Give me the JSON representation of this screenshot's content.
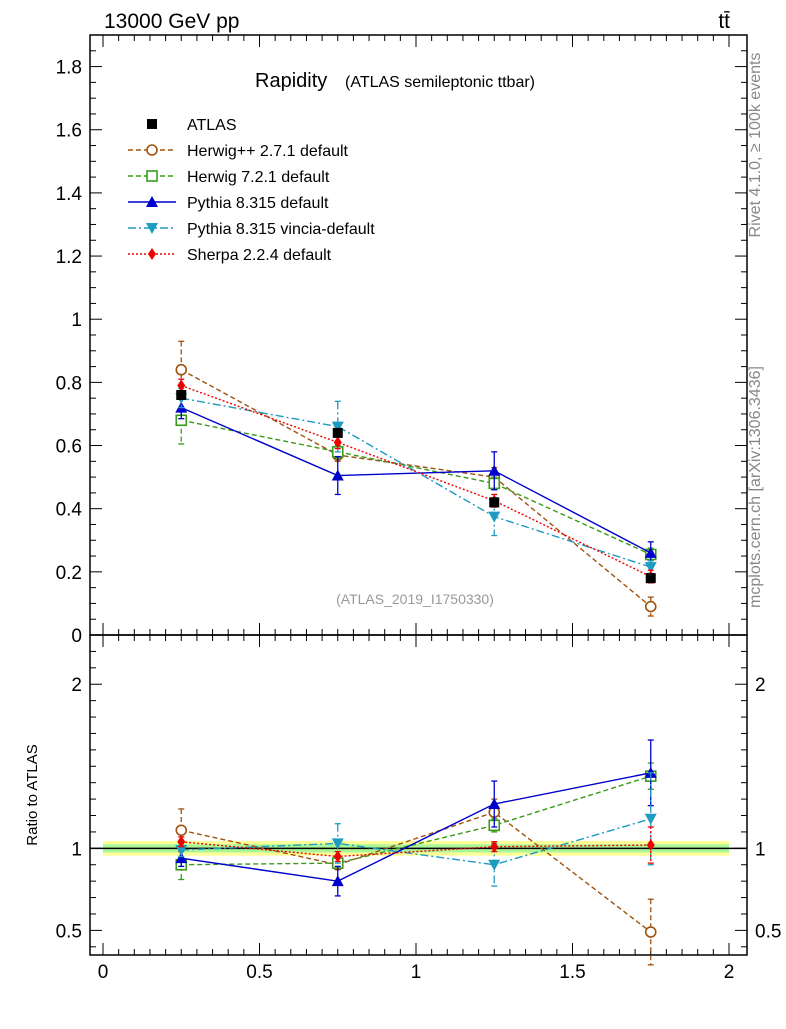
{
  "header": {
    "left": "13000 GeV pp",
    "right": "tt̄"
  },
  "side_labels": {
    "rivet": "Rivet 4.1.0, ≥ 100k events",
    "mcplots": "mcplots.cern.ch [arXiv:1306.3436]"
  },
  "colors": {
    "ATLAS": "#000000",
    "Herwig++ 2.7.1 default": "#a0520d",
    "Herwig 7.2.1 default": "#3a9a1a",
    "Pythia 8.315 default": "#0000cc",
    "Pythia 8.315 vincia-default": "#1e9bc0",
    "Sherpa 2.2.4 default": "#ee0000"
  },
  "chart_data": [
    {
      "panel": "main",
      "type": "line",
      "title": "Rapidity",
      "subtitle": "(ATLAS semileptonic ttbar)",
      "annotation": "(ATLAS_2019_I1750330)",
      "xlabel": "",
      "ylabel": "",
      "xlim": [
        0,
        2
      ],
      "ylim": [
        0,
        1.9
      ],
      "yticks": [
        "0",
        "0.2",
        "0.4",
        "0.6",
        "0.8",
        "1",
        "1.2",
        "1.4",
        "1.6",
        "1.8"
      ],
      "legend_position": "top-left",
      "x": [
        0.25,
        0.75,
        1.25,
        1.75
      ],
      "series": [
        {
          "name": "ATLAS",
          "values": [
            0.76,
            0.64,
            0.42,
            0.18
          ]
        },
        {
          "name": "Herwig++ 2.7.1 default",
          "values": [
            0.84,
            0.57,
            0.5,
            0.09
          ],
          "err": [
            0.09,
            0.02,
            0.03,
            0.03
          ]
        },
        {
          "name": "Herwig 7.2.1 default",
          "values": [
            0.68,
            0.58,
            0.48,
            0.255
          ],
          "err": [
            0.075,
            0.02,
            0.02,
            0.02
          ]
        },
        {
          "name": "Pythia 8.315 default",
          "values": [
            0.72,
            0.505,
            0.52,
            0.26
          ],
          "err": [
            0.035,
            0.06,
            0.06,
            0.035
          ]
        },
        {
          "name": "Pythia 8.315 vincia-default",
          "values": [
            0.75,
            0.66,
            0.375,
            0.215
          ],
          "err": [
            0.03,
            0.08,
            0.06,
            0.02
          ]
        },
        {
          "name": "Sherpa 2.2.4 default",
          "values": [
            0.79,
            0.61,
            0.425,
            0.185
          ],
          "err": [
            0.02,
            0.02,
            0.02,
            0.02
          ]
        }
      ]
    },
    {
      "panel": "ratio",
      "type": "line",
      "ylabel": "Ratio to ATLAS",
      "xlim": [
        0,
        2
      ],
      "ylim": [
        0.35,
        2.3
      ],
      "xticks": [
        "0",
        "0.5",
        "1",
        "1.5",
        "2"
      ],
      "yticks": [
        "0.5",
        "1",
        "2"
      ],
      "x": [
        0.25,
        0.75,
        1.25,
        1.75
      ],
      "series": [
        {
          "name": "Herwig++ 2.7.1 default",
          "values": [
            1.11,
            0.9,
            1.22,
            0.49
          ],
          "err": [
            0.13,
            0.03,
            0.08,
            0.2
          ]
        },
        {
          "name": "Herwig 7.2.1 default",
          "values": [
            0.9,
            0.91,
            1.14,
            1.44
          ],
          "err": [
            0.09,
            0.03,
            0.04,
            0.08
          ]
        },
        {
          "name": "Pythia 8.315 default",
          "values": [
            0.94,
            0.8,
            1.27,
            1.46
          ],
          "err": [
            0.05,
            0.09,
            0.14,
            0.2
          ]
        },
        {
          "name": "Pythia 8.315 vincia-default",
          "values": [
            0.99,
            1.03,
            0.9,
            1.18
          ],
          "err": [
            0.04,
            0.12,
            0.13,
            0.28
          ]
        },
        {
          "name": "Sherpa 2.2.4 default",
          "values": [
            1.04,
            0.95,
            1.01,
            1.02
          ],
          "err": [
            0.03,
            0.03,
            0.03,
            0.11
          ]
        }
      ]
    }
  ]
}
